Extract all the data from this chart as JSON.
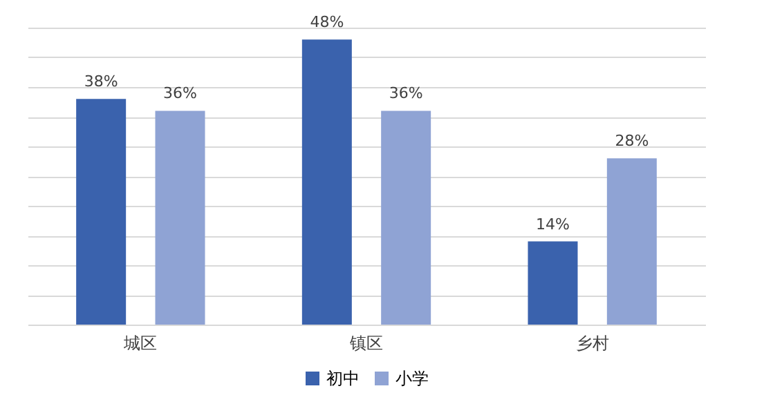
{
  "chart_data": {
    "type": "bar",
    "categories": [
      "城区",
      "镇区",
      "乡村"
    ],
    "series": [
      {
        "name": "初中",
        "color": "#3a62ad",
        "values": [
          38,
          48,
          14
        ],
        "value_labels": [
          "38%",
          "48%",
          "14%"
        ]
      },
      {
        "name": "小学",
        "color": "#8fa3d4",
        "values": [
          36,
          36,
          28
        ],
        "value_labels": [
          "36%",
          "36%",
          "28%"
        ]
      }
    ],
    "ylim": [
      0,
      50
    ],
    "yticks": [
      {
        "value": 0,
        "label": null
      },
      {
        "value": 5,
        "label": null
      },
      {
        "value": 10,
        "label": null
      },
      {
        "value": 15,
        "label": null
      },
      {
        "value": 20,
        "label": null
      },
      {
        "value": 25,
        "label": null
      },
      {
        "value": 30,
        "label": null
      },
      {
        "value": 35,
        "label": null
      },
      {
        "value": 40,
        "label": null
      },
      {
        "value": 45,
        "label": null
      },
      {
        "value": 50,
        "label": null
      }
    ],
    "tick_labels": "x",
    "grid": "y",
    "legend": "bottom"
  }
}
